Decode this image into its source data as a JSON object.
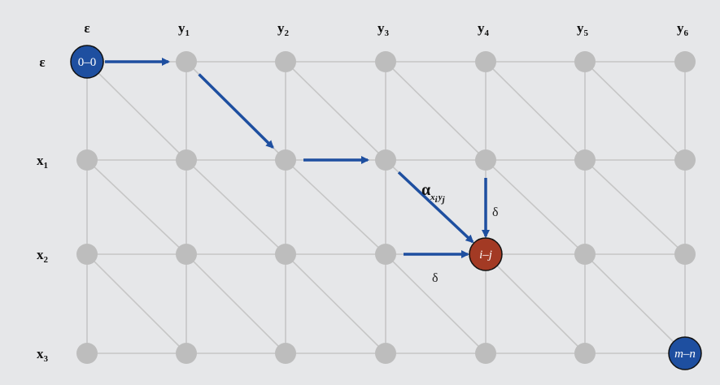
{
  "column_headers": [
    {
      "base": "ε",
      "sub": ""
    },
    {
      "base": "y",
      "sub": "1"
    },
    {
      "base": "y",
      "sub": "2"
    },
    {
      "base": "y",
      "sub": "3"
    },
    {
      "base": "y",
      "sub": "4"
    },
    {
      "base": "y",
      "sub": "5"
    },
    {
      "base": "y",
      "sub": "6"
    }
  ],
  "row_headers": [
    {
      "base": "ε",
      "sub": ""
    },
    {
      "base": "x",
      "sub": "1"
    },
    {
      "base": "x",
      "sub": "2"
    },
    {
      "base": "x",
      "sub": "3"
    }
  ],
  "special_nodes": {
    "start": {
      "label": "0–0",
      "row": 0,
      "col": 0,
      "color": "#1e4fa0"
    },
    "current": {
      "label": "i–j",
      "row": 2,
      "col": 4,
      "color": "#a33a24"
    },
    "end": {
      "label": "m–n",
      "row": 3,
      "col": 6,
      "color": "#1e4fa0"
    }
  },
  "path": [
    [
      0,
      0
    ],
    [
      0,
      1
    ],
    [
      1,
      2
    ],
    [
      1,
      3
    ],
    [
      2,
      4
    ]
  ],
  "incoming_arrows": [
    {
      "from": [
        1,
        3
      ],
      "to": [
        2,
        4
      ],
      "label": "α",
      "label_sub": "xi yj"
    },
    {
      "from": [
        1,
        4
      ],
      "to": [
        2,
        4
      ],
      "label": "δ"
    },
    {
      "from": [
        2,
        3
      ],
      "to": [
        2,
        4
      ],
      "label": "δ"
    }
  ],
  "colors": {
    "background": "#e6e7e9",
    "grid_node": "#bdbdbd",
    "grid_edge": "#c6c6c6",
    "path": "#1e4fa0"
  }
}
